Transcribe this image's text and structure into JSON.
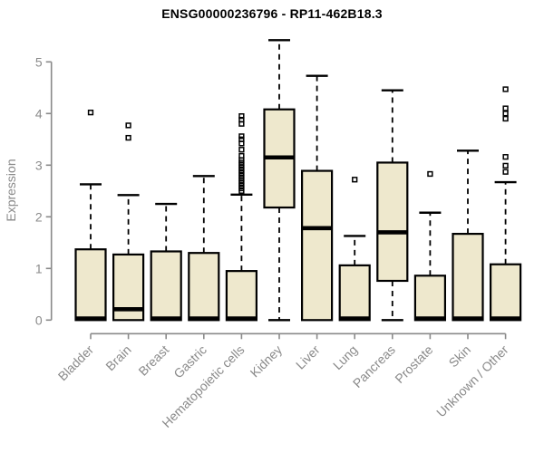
{
  "chart_data": {
    "type": "box",
    "title": "ENSG00000236796 - RP11-462B18.3",
    "ylabel": "Expression",
    "xlabel": "",
    "ylim": [
      0,
      5.45
    ],
    "yticks": [
      0,
      1,
      2,
      3,
      4,
      5
    ],
    "grid": false,
    "legend": null,
    "categories": [
      "Bladder",
      "Brain",
      "Breast",
      "Gastric",
      "Hematopoietic cells",
      "Kidney",
      "Liver",
      "Lung",
      "Pancreas",
      "Prostate",
      "Skin",
      "Unknown / Other"
    ],
    "boxes": [
      {
        "category": "Bladder",
        "low_whisker": null,
        "q1": 0,
        "median": 0.03,
        "q3": 1.37,
        "high_whisker": 2.63,
        "outliers": [
          4.02
        ]
      },
      {
        "category": "Brain",
        "low_whisker": null,
        "q1": 0,
        "median": 0.21,
        "q3": 1.27,
        "high_whisker": 2.42,
        "outliers": [
          3.53,
          3.77
        ]
      },
      {
        "category": "Breast",
        "low_whisker": null,
        "q1": 0,
        "median": 0.03,
        "q3": 1.33,
        "high_whisker": 2.25,
        "outliers": []
      },
      {
        "category": "Gastric",
        "low_whisker": null,
        "q1": 0,
        "median": 0.03,
        "q3": 1.3,
        "high_whisker": 2.79,
        "outliers": []
      },
      {
        "category": "Hematopoietic cells",
        "low_whisker": null,
        "q1": 0,
        "median": 0.03,
        "q3": 0.95,
        "high_whisker": 2.43,
        "outliers": [
          2.5,
          2.55,
          2.6,
          2.65,
          2.7,
          2.75,
          2.8,
          2.85,
          2.9,
          2.95,
          3.0,
          3.05,
          3.1,
          3.18,
          3.3,
          3.42,
          3.5,
          3.56,
          3.8,
          3.88,
          3.95
        ]
      },
      {
        "category": "Kidney",
        "low_whisker": 0,
        "q1": 2.18,
        "median": 3.15,
        "q3": 4.08,
        "high_whisker": 5.42,
        "outliers": []
      },
      {
        "category": "Liver",
        "low_whisker": null,
        "q1": 0,
        "median": 1.78,
        "q3": 2.89,
        "high_whisker": 4.73,
        "outliers": []
      },
      {
        "category": "Lung",
        "low_whisker": null,
        "q1": 0,
        "median": 0.03,
        "q3": 1.06,
        "high_whisker": 1.63,
        "outliers": [
          2.72
        ]
      },
      {
        "category": "Pancreas",
        "low_whisker": 0,
        "q1": 0.76,
        "median": 1.7,
        "q3": 3.05,
        "high_whisker": 4.45,
        "outliers": []
      },
      {
        "category": "Prostate",
        "low_whisker": null,
        "q1": 0,
        "median": 0.03,
        "q3": 0.86,
        "high_whisker": 2.08,
        "outliers": [
          2.83
        ]
      },
      {
        "category": "Skin",
        "low_whisker": null,
        "q1": 0,
        "median": 0.03,
        "q3": 1.67,
        "high_whisker": 3.28,
        "outliers": []
      },
      {
        "category": "Unknown / Other",
        "low_whisker": null,
        "q1": 0,
        "median": 0.03,
        "q3": 1.08,
        "high_whisker": 2.67,
        "outliers": [
          2.87,
          2.99,
          3.16,
          3.9,
          4.0,
          4.1,
          4.47
        ]
      }
    ],
    "colors": {
      "box_fill": "#EEE8CD",
      "box_border": "#000000",
      "median": "#000000",
      "whisker": "#000000",
      "axis": "#8a8a8a",
      "tick_text": "#8a8a8a",
      "title_text": "#000000",
      "background": "#ffffff"
    }
  }
}
